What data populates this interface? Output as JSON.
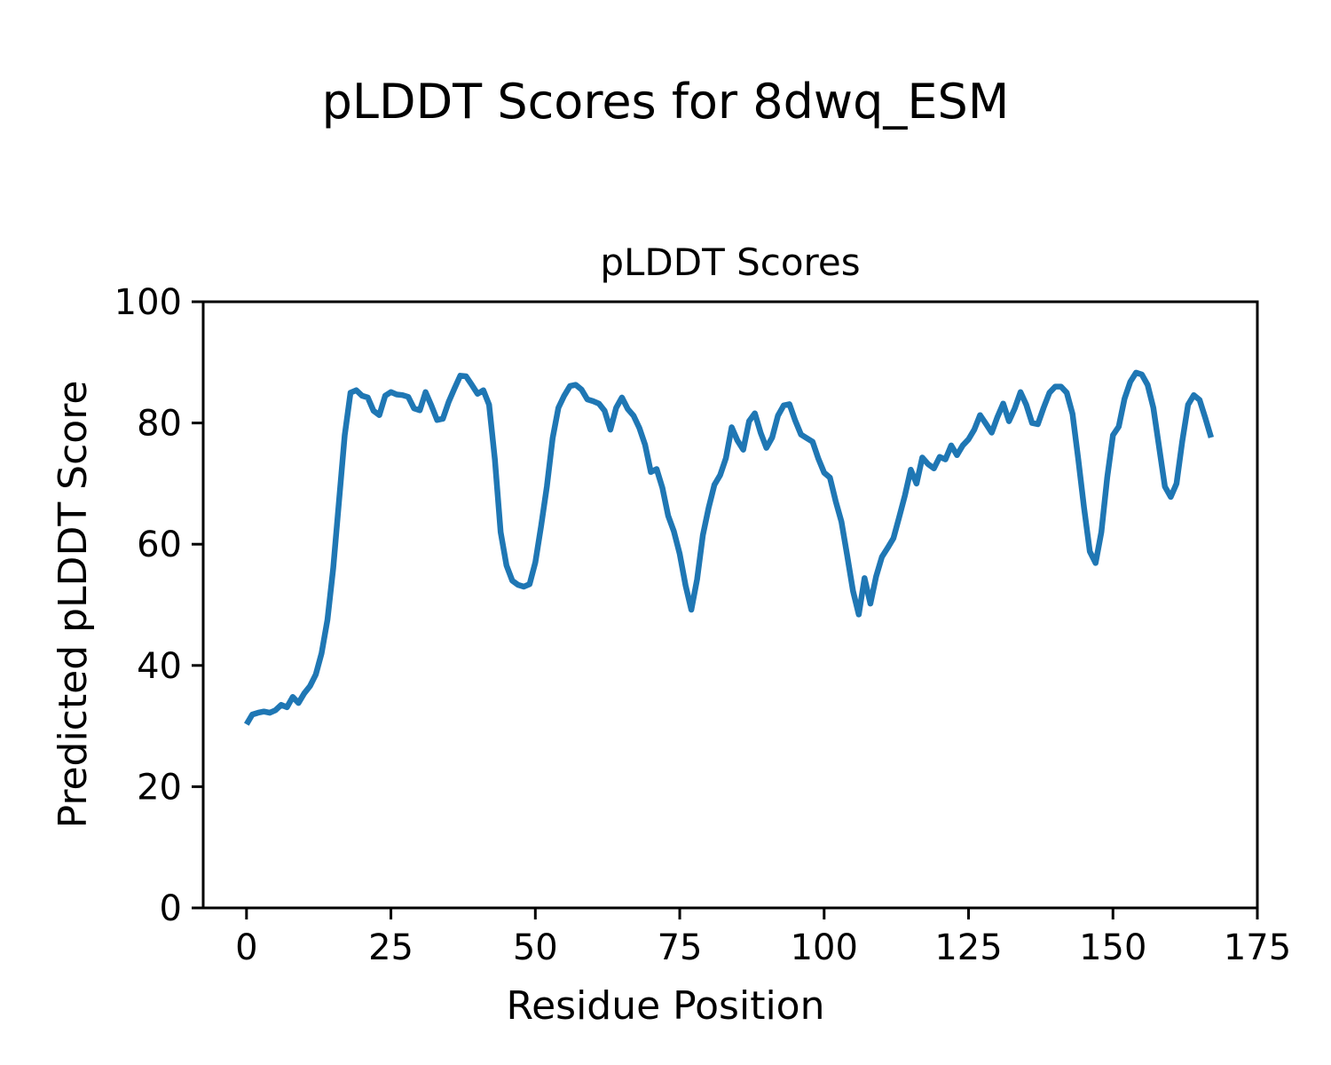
{
  "chart_data": {
    "type": "line",
    "figure_title": "pLDDT Scores for 8dwq_ESM",
    "title": "pLDDT Scores",
    "xlabel": "Residue Position",
    "ylabel": "Predicted pLDDT Score",
    "legend": null,
    "grid": false,
    "line_color": "#1f77b4",
    "axis_color": "#000000",
    "xlim": [
      -7.5,
      175
    ],
    "ylim": [
      0,
      100
    ],
    "x_ticks": [
      0,
      25,
      50,
      75,
      100,
      125,
      150,
      175
    ],
    "y_ticks": [
      0,
      20,
      40,
      60,
      80,
      100
    ],
    "x_start": 0,
    "values": [
      30.3,
      31.9,
      32.2,
      32.4,
      32.2,
      32.6,
      33.5,
      33.1,
      34.8,
      33.8,
      35.4,
      36.6,
      38.5,
      42.0,
      47.5,
      56.0,
      67.0,
      78.0,
      85.0,
      85.4,
      84.5,
      84.2,
      82.0,
      81.3,
      84.5,
      85.1,
      84.7,
      84.6,
      84.3,
      82.4,
      82.1,
      85.1,
      82.9,
      80.5,
      80.7,
      83.5,
      85.7,
      87.8,
      87.7,
      86.3,
      84.8,
      85.4,
      83.0,
      74.0,
      62.0,
      56.5,
      54.0,
      53.3,
      53.0,
      53.4,
      57.0,
      63.0,
      69.5,
      77.5,
      82.5,
      84.5,
      86.1,
      86.3,
      85.5,
      83.9,
      83.6,
      83.2,
      82.0,
      78.9,
      82.5,
      84.2,
      82.3,
      81.2,
      79.2,
      76.4,
      71.9,
      72.4,
      69.3,
      64.7,
      62.1,
      58.4,
      53.2,
      49.2,
      54.2,
      61.5,
      66.0,
      69.8,
      71.4,
      74.2,
      79.3,
      77.1,
      75.6,
      80.3,
      81.6,
      78.4,
      75.9,
      77.6,
      81.2,
      82.9,
      83.1,
      80.4,
      78.1,
      77.5,
      76.9,
      74.1,
      71.8,
      71.0,
      67.1,
      63.7,
      58.1,
      52.3,
      48.4,
      54.4,
      50.2,
      54.7,
      57.9,
      59.4,
      61.0,
      64.5,
      68.1,
      72.3,
      70.0,
      74.3,
      73.2,
      72.5,
      74.4,
      74.0,
      76.3,
      74.7,
      76.3,
      77.3,
      78.9,
      81.3,
      79.9,
      78.4,
      81.0,
      83.2,
      80.3,
      82.4,
      85.1,
      83.0,
      80.0,
      79.8,
      82.5,
      85.0,
      86.0,
      86.0,
      85.0,
      81.5,
      74.0,
      66.0,
      58.8,
      56.9,
      62.0,
      71.0,
      78.0,
      79.4,
      84.0,
      86.8,
      88.3,
      88.0,
      86.3,
      82.5,
      76.0,
      69.5,
      67.8,
      70.0,
      77.0,
      83.0,
      84.6,
      83.8,
      80.8,
      77.6
    ]
  }
}
